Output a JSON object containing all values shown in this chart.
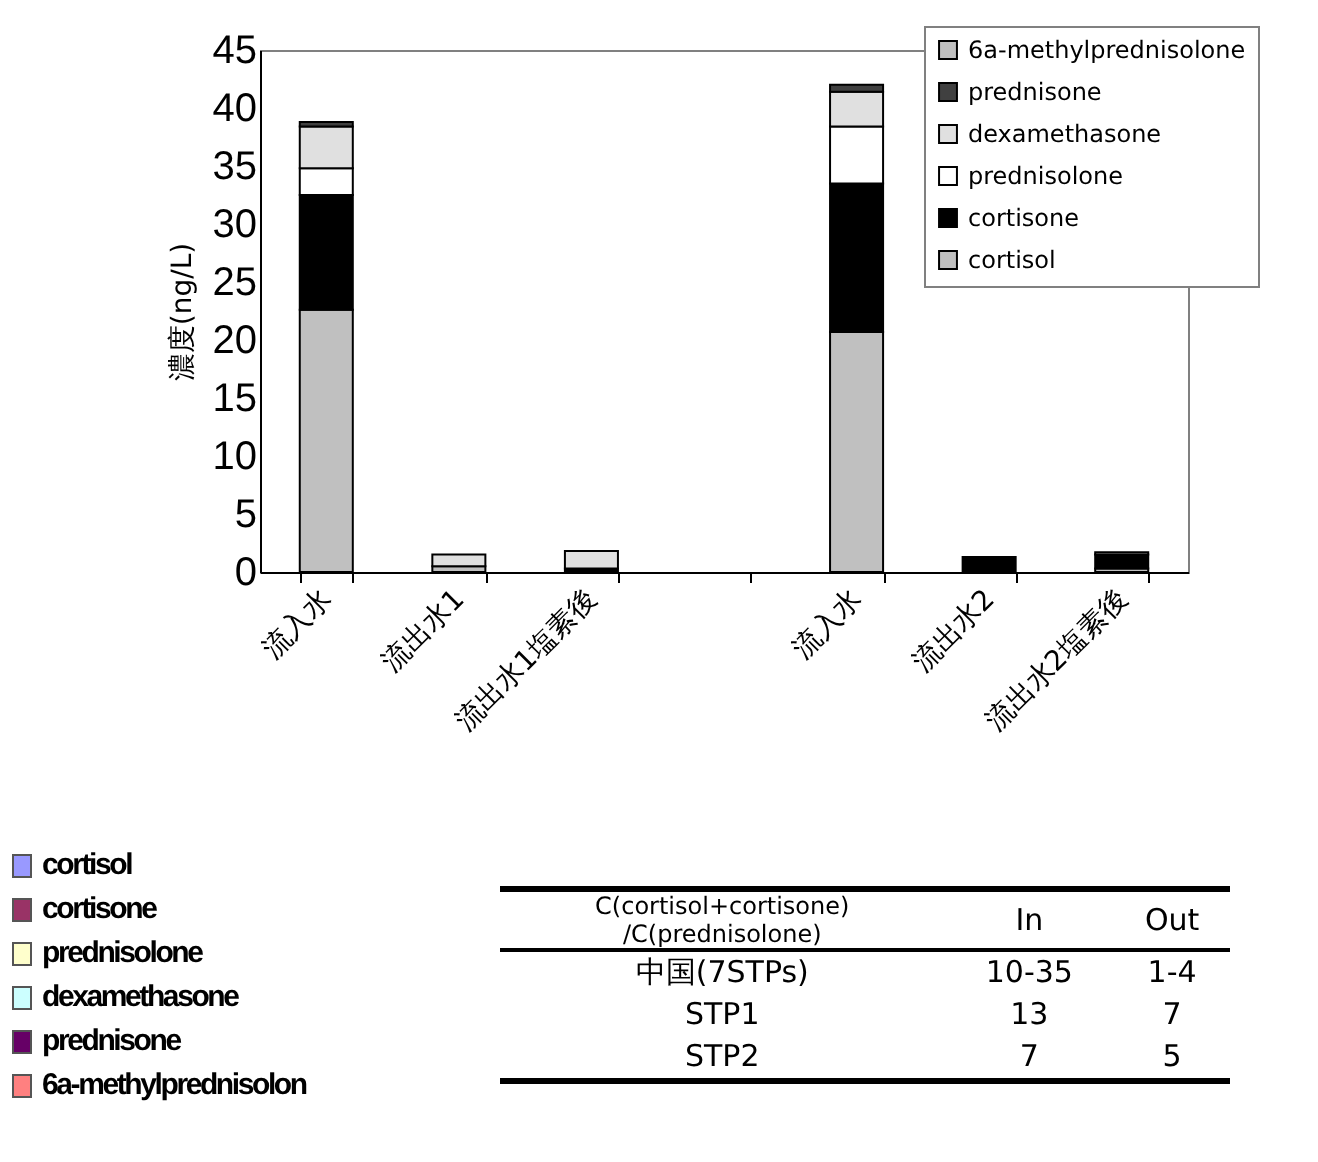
{
  "chart_data": {
    "type": "bar",
    "stacked": true,
    "ylabel": "濃度(ng/L)",
    "categories": [
      "流入水",
      "流出水1",
      "流出水1塩素後",
      null,
      "流入水",
      "流出水2",
      "流出水2塩素後"
    ],
    "series": [
      {
        "name": "cortisol",
        "color": "#c0c0c0",
        "values": [
          22.6,
          0.5,
          null,
          null,
          20.7,
          null,
          0.3
        ]
      },
      {
        "name": "cortisone",
        "color": "#000000",
        "values": [
          9.9,
          null,
          0.3,
          null,
          12.8,
          1.3,
          1.2
        ]
      },
      {
        "name": "prednisolone",
        "color": "#ffffff",
        "values": [
          2.3,
          null,
          null,
          null,
          4.9,
          null,
          0.2
        ]
      },
      {
        "name": "dexamethasone",
        "color": "#e0e0e0",
        "values": [
          3.6,
          1.0,
          1.5,
          null,
          3.0,
          null,
          null
        ]
      },
      {
        "name": "prednisone",
        "color": "#404040",
        "values": [
          0.4,
          null,
          null,
          null,
          0.6,
          null,
          null
        ]
      },
      {
        "name": "6a-methylprednisolone",
        "color": "#c0c0c0",
        "values": [
          null,
          null,
          null,
          null,
          null,
          null,
          null
        ]
      }
    ],
    "ylim": [
      0,
      45
    ],
    "yticks": [
      0,
      5,
      10,
      15,
      20,
      25,
      30,
      35,
      40,
      45
    ],
    "grid": false,
    "legend": "top right",
    "annotations": [
      "C(cortisol+cortisone)\n/C(prednisolone)",
      "In",
      "Out",
      "中国(7STPs)",
      "10-35",
      "1-4",
      "STP1",
      "13",
      "7",
      "STP2",
      "7",
      "5",
      "cortisol",
      "cortisone",
      "prednisolone",
      "dexamethasone",
      "prednisone",
      "6a-methylprednisolon"
    ]
  }
}
